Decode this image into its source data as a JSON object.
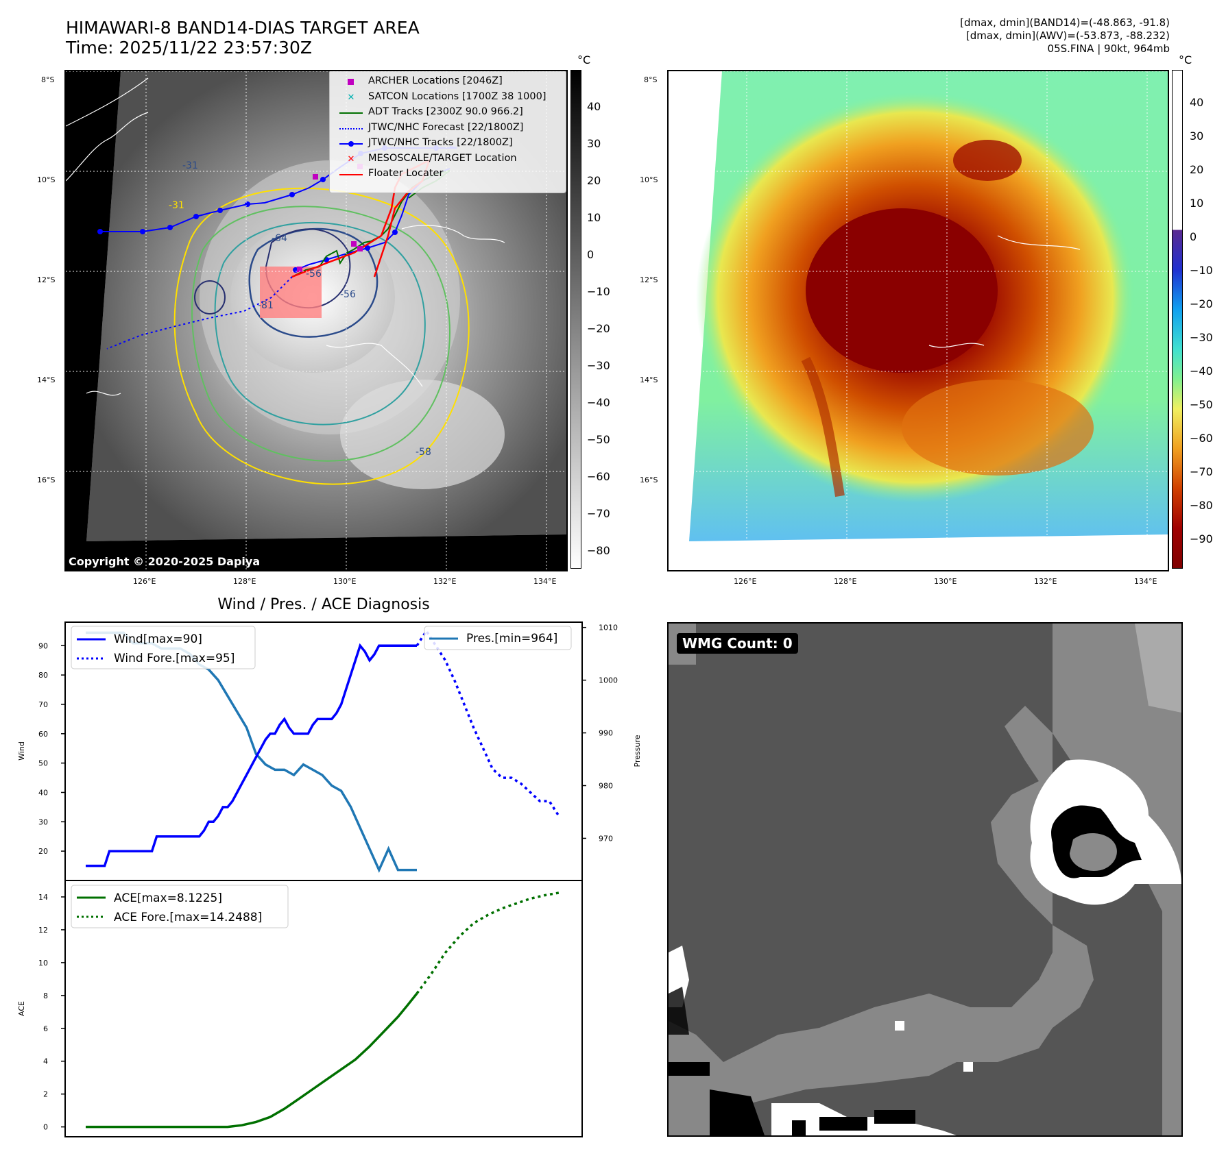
{
  "header": {
    "title_line1": "HIMAWARI-8 BAND14-DIAS TARGET AREA",
    "title_line2": "Time: 2025/11/22 23:57:30Z",
    "info_line1": "[dmax, dmin](BAND14)=(-48.863, -91.8)",
    "info_line2": "[dmax, dmin](AWV)=(-53.873, -88.232)",
    "info_line3": "05S.FINA | 90kt, 964mb"
  },
  "map_axes": {
    "lat_labels": [
      "8°S",
      "10°S",
      "12°S",
      "14°S",
      "16°S"
    ],
    "lon_labels": [
      "126°E",
      "128°E",
      "130°E",
      "132°E",
      "134°E"
    ]
  },
  "ir_panel": {
    "copyright": "Copyright © 2020-2025 Dapiya",
    "colorbar_unit": "°C",
    "colorbar_ticks": [
      "40",
      "30",
      "20",
      "10",
      "0",
      "−10",
      "−20",
      "−30",
      "−40",
      "−50",
      "−60",
      "−70",
      "−80"
    ],
    "contour_labels": [
      "-31",
      "-31",
      "-64",
      "-56",
      "-56",
      "-81",
      "-58"
    ],
    "legend": [
      {
        "label": "ARCHER Locations [2046Z]",
        "symbol": "square",
        "color": "#c000c0"
      },
      {
        "label": "SATCON Locations [1700Z 38 1000]",
        "symbol": "x",
        "color": "#00b0b0"
      },
      {
        "label": "ADT Tracks [2300Z 90.0 966.2]",
        "symbol": "line",
        "color": "#007000"
      },
      {
        "label": "JTWC/NHC Forecast [22/1800Z]",
        "symbol": "dotted",
        "color": "#0000ff"
      },
      {
        "label": "JTWC/NHC Tracks [22/1800Z]",
        "symbol": "line-dot",
        "color": "#0000ff"
      },
      {
        "label": "MESOSCALE/TARGET Location",
        "symbol": "x",
        "color": "#ff0000"
      },
      {
        "label": "Floater Locater",
        "symbol": "line",
        "color": "#ff0000"
      }
    ]
  },
  "awv_panel": {
    "colorbar_unit": "°C",
    "colorbar_ticks": [
      "40",
      "30",
      "20",
      "10",
      "0",
      "−10",
      "−20",
      "−30",
      "−40",
      "−50",
      "−60",
      "−70",
      "−80",
      "−90"
    ]
  },
  "wmg_panel": {
    "label": "WMG Count: 0"
  },
  "colors": {
    "wind": "#0000ff",
    "pressure": "#1f77b4",
    "ace": "#007000"
  },
  "chart_data": [
    {
      "type": "line",
      "title": "Wind / Pres. / ACE Diagnosis",
      "xlabel": "",
      "ylabel": "Wind",
      "ylabel_right": "Pressure",
      "ylim": [
        10,
        98
      ],
      "ylim_right": [
        962,
        1011
      ],
      "y_ticks": [
        20,
        30,
        40,
        50,
        60,
        70,
        80,
        90
      ],
      "y_ticks_right": [
        970,
        980,
        990,
        1000,
        1010
      ],
      "legend": [
        "Wind[max=90]",
        "Wind Fore.[max=95]"
      ],
      "legend_right": [
        "Pres.[min=964]"
      ],
      "series": [
        {
          "name": "Wind[max=90]",
          "style": "solid",
          "x": [
            0,
            1,
            2,
            3,
            4,
            5,
            6,
            7,
            8,
            9,
            10,
            11,
            12,
            13,
            14,
            15,
            16,
            17,
            18,
            19,
            20,
            21,
            22,
            23,
            24,
            25,
            26,
            27,
            28,
            29,
            30,
            31,
            32,
            33,
            34,
            35,
            36,
            37,
            38,
            39,
            40,
            41,
            42,
            43,
            44,
            45,
            46,
            47,
            48,
            49,
            50,
            51,
            52,
            53,
            54,
            55,
            56,
            57,
            58,
            59,
            60,
            61,
            62,
            63,
            64,
            65,
            66,
            67,
            68,
            69,
            70
          ],
          "values": [
            15,
            15,
            15,
            15,
            15,
            20,
            20,
            20,
            20,
            20,
            20,
            20,
            20,
            20,
            20,
            25,
            25,
            25,
            25,
            25,
            25,
            25,
            25,
            25,
            25,
            27,
            30,
            30,
            32,
            35,
            35,
            37,
            40,
            43,
            46,
            49,
            52,
            55,
            58,
            60,
            60,
            63,
            65,
            62,
            60,
            60,
            60,
            60,
            63,
            65,
            65,
            65,
            65,
            67,
            70,
            75,
            80,
            85,
            90,
            88,
            85,
            87,
            90,
            90,
            90,
            90,
            90,
            90,
            90,
            90,
            90
          ]
        },
        {
          "name": "Wind Fore.[max=95]",
          "style": "dotted",
          "x": [
            70,
            72,
            74,
            76,
            78,
            80,
            82,
            84,
            86,
            88,
            90,
            92,
            94,
            96,
            98,
            100
          ],
          "values": [
            90,
            95,
            90,
            85,
            78,
            70,
            62,
            55,
            48,
            45,
            45,
            43,
            40,
            37,
            37,
            32
          ]
        },
        {
          "name": "Pres.[min=964]",
          "style": "solid",
          "axis": "right",
          "x": [
            0,
            2,
            4,
            6,
            8,
            10,
            12,
            14,
            16,
            18,
            20,
            22,
            24,
            26,
            28,
            30,
            32,
            34,
            36,
            38,
            40,
            42,
            44,
            46,
            48,
            50,
            52,
            54,
            56,
            58,
            60,
            62,
            64,
            66,
            68,
            70
          ],
          "values": [
            1009,
            1009,
            1009,
            1009,
            1009,
            1007,
            1007,
            1007,
            1006,
            1006,
            1006,
            1005,
            1003,
            1002,
            1000,
            997,
            994,
            991,
            986,
            984,
            983,
            983,
            982,
            984,
            983,
            982,
            980,
            979,
            976,
            972,
            968,
            964,
            968,
            964,
            964,
            964
          ]
        }
      ]
    },
    {
      "type": "line",
      "xlabel": "",
      "ylabel": "ACE",
      "ylim": [
        -0.6,
        15
      ],
      "y_ticks": [
        0,
        2,
        4,
        6,
        8,
        10,
        12,
        14
      ],
      "legend": [
        "ACE[max=8.1225]",
        "ACE Fore.[max=14.2488]"
      ],
      "series": [
        {
          "name": "ACE[max=8.1225]",
          "style": "solid",
          "x": [
            0,
            5,
            10,
            15,
            20,
            25,
            30,
            33,
            36,
            39,
            42,
            45,
            48,
            51,
            54,
            57,
            60,
            63,
            66,
            68,
            70
          ],
          "values": [
            0,
            0,
            0,
            0,
            0,
            0,
            0,
            0.1,
            0.3,
            0.6,
            1.1,
            1.7,
            2.3,
            2.9,
            3.5,
            4.1,
            4.9,
            5.8,
            6.7,
            7.4,
            8.1225
          ]
        },
        {
          "name": "ACE Fore.[max=14.2488]",
          "style": "dotted",
          "x": [
            70,
            73,
            76,
            79,
            82,
            85,
            88,
            91,
            94,
            97,
            100
          ],
          "values": [
            8.1225,
            9.3,
            10.6,
            11.6,
            12.4,
            12.9,
            13.3,
            13.6,
            13.9,
            14.1,
            14.2488
          ]
        }
      ]
    }
  ]
}
